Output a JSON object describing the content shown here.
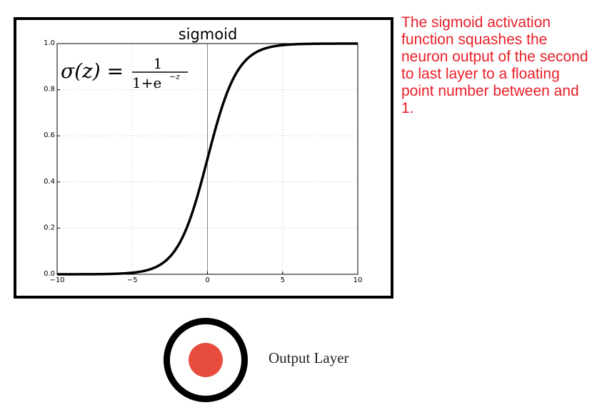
{
  "chart_data": {
    "type": "line",
    "title": "sigmoid",
    "function": "sigmoid",
    "xlim": [
      -10,
      10
    ],
    "ylim": [
      0.0,
      1.0
    ],
    "x_ticks": [
      -10,
      -5,
      0,
      5,
      10
    ],
    "y_ticks": [
      0.0,
      0.2,
      0.4,
      0.6,
      0.8,
      1.0
    ],
    "x_tick_labels": [
      "−10",
      "−5",
      "0",
      "5",
      "10"
    ],
    "y_tick_labels": [
      "0.0",
      "0.2",
      "0.4",
      "0.6",
      "0.8",
      "1.0"
    ],
    "grid": true,
    "reference_lines": {
      "x": 0
    },
    "line_color": "#000000",
    "formula": {
      "lhs": "σ(z) =",
      "numerator": "1",
      "denominator": "1+e",
      "exponent": "−z"
    }
  },
  "annotation": {
    "text": "The sigmoid activation function squashes the neuron output of the second to last layer to a floating point number between and 1.",
    "color": "#e8202a"
  },
  "output": {
    "label": "Output Layer",
    "dot_color": "#e74c3c"
  }
}
